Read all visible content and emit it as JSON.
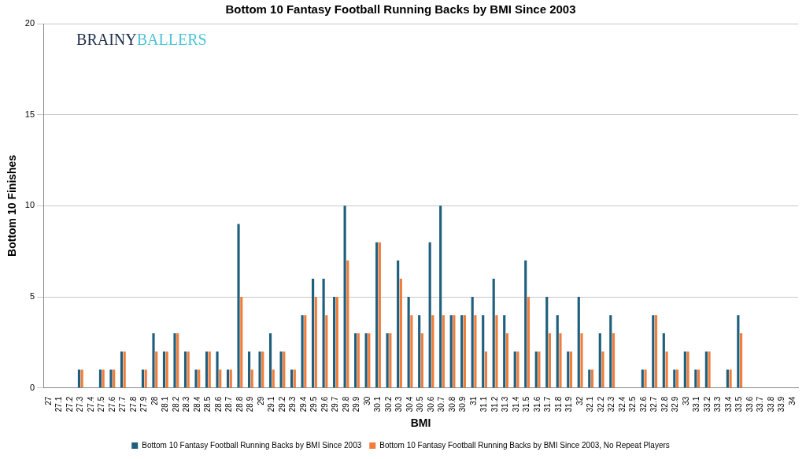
{
  "chart_data": {
    "type": "bar",
    "title": "Bottom 10 Fantasy Football Running Backs by BMI Since 2003",
    "x_label": "BMI",
    "y_label": "Bottom 10 Finishes",
    "categories": [
      "27",
      "27.1",
      "27.2",
      "27.3",
      "27.4",
      "27.5",
      "27.6",
      "27.7",
      "27.8",
      "27.9",
      "28",
      "28.1",
      "28.2",
      "28.3",
      "28.4",
      "28.5",
      "28.6",
      "28.7",
      "28.8",
      "28.9",
      "29",
      "29.1",
      "29.2",
      "29.3",
      "29.4",
      "29.5",
      "29.6",
      "29.7",
      "29.8",
      "29.9",
      "30",
      "30.1",
      "30.2",
      "30.3",
      "30.4",
      "30.5",
      "30.6",
      "30.7",
      "30.8",
      "30.9",
      "31",
      "31.1",
      "31.2",
      "31.3",
      "31.4",
      "31.5",
      "31.6",
      "31.7",
      "31.8",
      "31.9",
      "32",
      "32.1",
      "32.2",
      "32.3",
      "32.4",
      "32.5",
      "32.6",
      "32.7",
      "32.8",
      "32.9",
      "33",
      "33.1",
      "33.2",
      "33.3",
      "33.4",
      "33.5",
      "33.6",
      "33.7",
      "33.8",
      "33.9",
      "34"
    ],
    "series": [
      {
        "name": "Bottom 10 Fantasy Football Running Backs by BMI Since 2003",
        "color": "#1f5f7d",
        "values": [
          0,
          0,
          0,
          1,
          0,
          1,
          1,
          2,
          0,
          1,
          3,
          2,
          3,
          2,
          1,
          2,
          2,
          1,
          9,
          2,
          2,
          3,
          2,
          1,
          4,
          6,
          6,
          5,
          10,
          3,
          3,
          8,
          3,
          7,
          5,
          4,
          8,
          10,
          4,
          4,
          5,
          4,
          6,
          4,
          2,
          7,
          2,
          5,
          4,
          2,
          5,
          1,
          3,
          4,
          0,
          0,
          1,
          4,
          3,
          1,
          2,
          1,
          2,
          0,
          1,
          4,
          0,
          0,
          0,
          0,
          0
        ]
      },
      {
        "name": "Bottom 10 Fantasy Football Running Backs by BMI Since 2003, No Repeat Players",
        "color": "#f07d3a",
        "values": [
          0,
          0,
          0,
          1,
          0,
          1,
          1,
          2,
          0,
          1,
          2,
          2,
          3,
          2,
          1,
          2,
          1,
          1,
          5,
          1,
          2,
          1,
          2,
          1,
          4,
          5,
          4,
          5,
          7,
          3,
          3,
          8,
          3,
          6,
          4,
          3,
          4,
          4,
          4,
          4,
          4,
          2,
          4,
          3,
          2,
          5,
          2,
          3,
          3,
          2,
          3,
          1,
          2,
          3,
          0,
          0,
          1,
          4,
          2,
          1,
          2,
          1,
          2,
          0,
          1,
          3,
          0,
          0,
          0,
          0,
          0
        ]
      }
    ],
    "ylim": [
      0,
      20
    ],
    "yticks": [
      0,
      5,
      10,
      15,
      20
    ],
    "grid": true,
    "legend": "bottom",
    "annotations": [
      {
        "text": "BRAINY",
        "color": "#1d2d4a"
      },
      {
        "text": "BALLERS",
        "color": "#4cc3da"
      }
    ]
  }
}
